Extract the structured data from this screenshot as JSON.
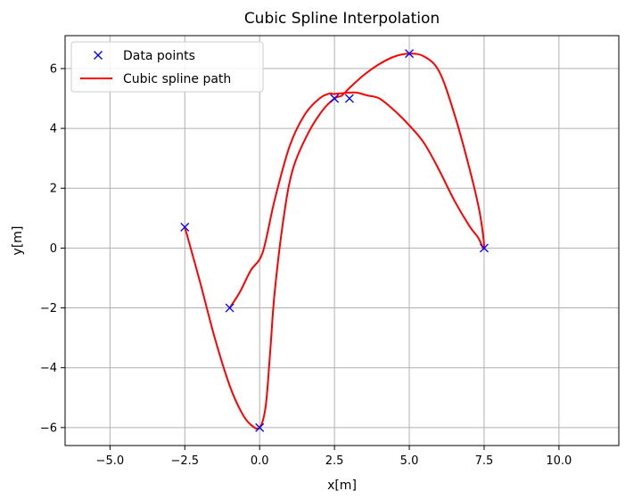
{
  "chart_data": {
    "type": "line",
    "title": "Cubic Spline Interpolation",
    "xlabel": "x[m]",
    "ylabel": "y[m]",
    "xlim": [
      -6.5,
      12.0
    ],
    "ylim": [
      -6.6,
      7.1
    ],
    "xticks": [
      -5.0,
      -2.5,
      0.0,
      2.5,
      5.0,
      7.5,
      10.0
    ],
    "xtick_labels": [
      "−5.0",
      "−2.5",
      "0.0",
      "2.5",
      "5.0",
      "7.5",
      "10.0"
    ],
    "yticks": [
      -6,
      -4,
      -2,
      0,
      2,
      4,
      6
    ],
    "ytick_labels": [
      "−6",
      "−4",
      "−2",
      "0",
      "2",
      "4",
      "6"
    ],
    "grid": true,
    "legend_position": "top-left",
    "series": [
      {
        "name": "Data points",
        "kind": "scatter",
        "marker": "x",
        "color": "#0000ff",
        "x": [
          -2.5,
          0.0,
          3.0,
          2.5,
          5.0,
          7.5,
          -1.0
        ],
        "y": [
          0.7,
          -6.0,
          5.0,
          5.0,
          6.5,
          0.0,
          -2.0
        ]
      },
      {
        "name": "Cubic spline path",
        "kind": "line",
        "color": "#ff0000",
        "x": [
          -2.5,
          -2.0,
          -1.5,
          -1.0,
          -0.6,
          -0.3,
          0.0,
          0.2,
          0.35,
          0.5,
          0.8,
          1.1,
          1.6,
          2.1,
          2.5,
          2.75,
          3.0,
          3.5,
          4.0,
          4.5,
          5.0,
          5.5,
          6.0,
          6.5,
          7.0,
          7.35,
          7.5,
          7.3,
          7.0,
          6.5,
          6.0,
          5.5,
          5.0,
          4.5,
          4.0,
          3.6,
          3.2,
          2.8,
          2.45,
          2.35,
          2.0,
          1.5,
          1.0,
          0.5,
          0.1,
          -0.3,
          -0.65,
          -1.0
        ],
        "y": [
          0.7,
          -1.1,
          -3.0,
          -4.6,
          -5.5,
          -5.9,
          -6.0,
          -5.3,
          -3.5,
          -1.5,
          1.0,
          2.6,
          3.8,
          4.6,
          5.0,
          5.1,
          5.35,
          5.8,
          6.15,
          6.4,
          6.5,
          6.4,
          5.9,
          4.5,
          2.7,
          1.2,
          0.0,
          0.35,
          0.75,
          1.6,
          2.6,
          3.5,
          4.1,
          4.6,
          5.0,
          5.1,
          5.2,
          5.18,
          5.15,
          5.17,
          5.0,
          4.45,
          3.4,
          1.6,
          -0.15,
          -0.75,
          -1.45,
          -2.0
        ]
      }
    ]
  }
}
